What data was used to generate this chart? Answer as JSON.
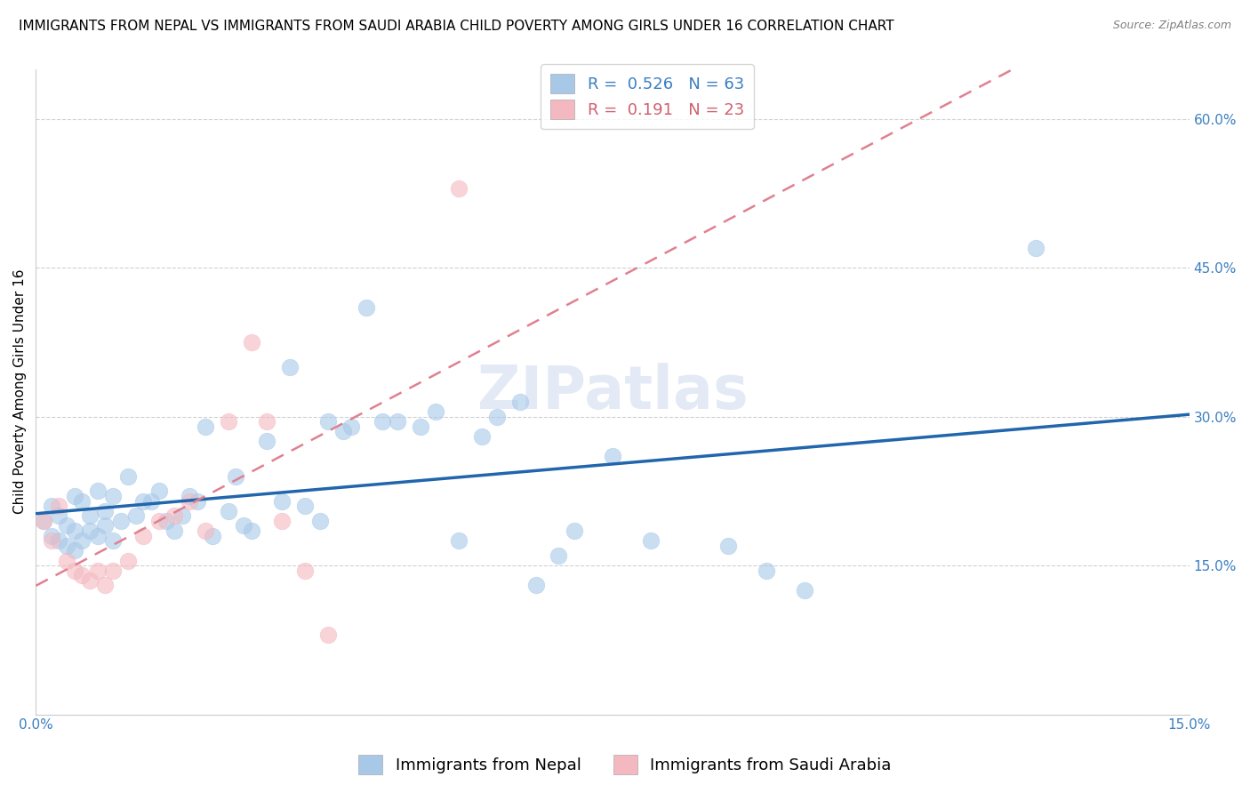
{
  "title": "IMMIGRANTS FROM NEPAL VS IMMIGRANTS FROM SAUDI ARABIA CHILD POVERTY AMONG GIRLS UNDER 16 CORRELATION CHART",
  "source": "Source: ZipAtlas.com",
  "ylabel": "Child Poverty Among Girls Under 16",
  "xlim": [
    0.0,
    0.15
  ],
  "ylim": [
    0.0,
    0.65
  ],
  "nepal_color": "#a8c8e8",
  "nepal_line_color": "#2166ac",
  "saudi_color": "#f4b8c0",
  "saudi_line_color": "#e08090",
  "nepal_R": 0.526,
  "nepal_N": 63,
  "saudi_R": 0.191,
  "saudi_N": 23,
  "watermark": "ZIPatlas",
  "nepal_scatter_x": [
    0.001,
    0.002,
    0.002,
    0.003,
    0.003,
    0.004,
    0.004,
    0.005,
    0.005,
    0.005,
    0.006,
    0.006,
    0.007,
    0.007,
    0.008,
    0.008,
    0.009,
    0.009,
    0.01,
    0.01,
    0.011,
    0.012,
    0.013,
    0.014,
    0.015,
    0.016,
    0.017,
    0.018,
    0.019,
    0.02,
    0.021,
    0.022,
    0.023,
    0.025,
    0.026,
    0.027,
    0.028,
    0.03,
    0.032,
    0.033,
    0.035,
    0.037,
    0.038,
    0.04,
    0.041,
    0.043,
    0.045,
    0.047,
    0.05,
    0.052,
    0.055,
    0.058,
    0.06,
    0.063,
    0.065,
    0.068,
    0.07,
    0.075,
    0.08,
    0.09,
    0.095,
    0.1,
    0.13
  ],
  "nepal_scatter_y": [
    0.195,
    0.18,
    0.21,
    0.2,
    0.175,
    0.19,
    0.17,
    0.22,
    0.185,
    0.165,
    0.215,
    0.175,
    0.2,
    0.185,
    0.225,
    0.18,
    0.205,
    0.19,
    0.22,
    0.175,
    0.195,
    0.24,
    0.2,
    0.215,
    0.215,
    0.225,
    0.195,
    0.185,
    0.2,
    0.22,
    0.215,
    0.29,
    0.18,
    0.205,
    0.24,
    0.19,
    0.185,
    0.275,
    0.215,
    0.35,
    0.21,
    0.195,
    0.295,
    0.285,
    0.29,
    0.41,
    0.295,
    0.295,
    0.29,
    0.305,
    0.175,
    0.28,
    0.3,
    0.315,
    0.13,
    0.16,
    0.185,
    0.26,
    0.175,
    0.17,
    0.145,
    0.125,
    0.47
  ],
  "saudi_scatter_x": [
    0.001,
    0.002,
    0.003,
    0.004,
    0.005,
    0.006,
    0.007,
    0.008,
    0.009,
    0.01,
    0.012,
    0.014,
    0.016,
    0.018,
    0.02,
    0.022,
    0.025,
    0.028,
    0.03,
    0.032,
    0.035,
    0.038,
    0.055
  ],
  "saudi_scatter_y": [
    0.195,
    0.175,
    0.21,
    0.155,
    0.145,
    0.14,
    0.135,
    0.145,
    0.13,
    0.145,
    0.155,
    0.18,
    0.195,
    0.2,
    0.215,
    0.185,
    0.295,
    0.375,
    0.295,
    0.195,
    0.145,
    0.08,
    0.53
  ],
  "grid_color": "#d0d0d0",
  "title_fontsize": 11,
  "axis_label_fontsize": 11,
  "tick_fontsize": 11,
  "legend_fontsize": 13
}
